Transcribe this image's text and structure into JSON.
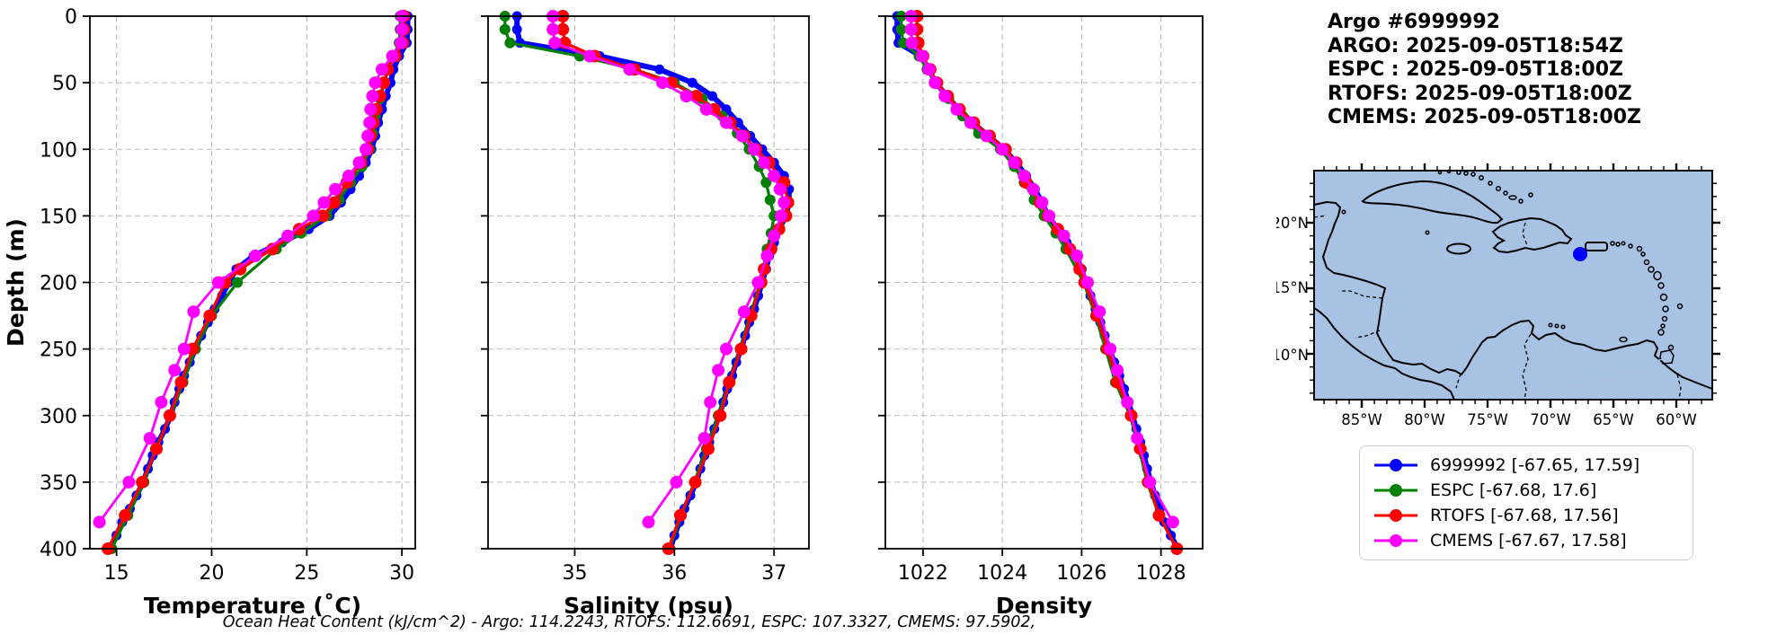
{
  "header": {
    "title": "Argo #6999992",
    "lines": [
      "ARGO: 2025-09-05T18:54Z",
      "ESPC : 2025-09-05T18:00Z",
      "RTOFS: 2025-09-05T18:00Z",
      "CMEMS: 2025-09-05T18:00Z"
    ]
  },
  "caption": "Ocean Heat Content (kJ/cm^2) - Argo: 114.2243,  RTOFS: 112.6691,  ESPC: 107.3327,  CMEMS: 97.5902,",
  "colors": {
    "argo": "#0000ff",
    "espc": "#008000",
    "rtofs": "#ff0000",
    "cmems": "#ff00ff",
    "land": "#deb887",
    "ocean": "#a7c2e2",
    "grid": "#bbbbbb"
  },
  "legend": {
    "entries": [
      {
        "label": "6999992 [-67.65, 17.59]",
        "color": "#0000ff"
      },
      {
        "label": "ESPC [-67.68, 17.6]",
        "color": "#008000"
      },
      {
        "label": "RTOFS [-67.68, 17.56]",
        "color": "#ff0000"
      },
      {
        "label": "CMEMS [-67.67, 17.58]",
        "color": "#ff00ff"
      }
    ]
  },
  "map": {
    "lat_labels": [
      "20°N",
      "15°N",
      "10°N"
    ],
    "lon_labels": [
      "85°W",
      "80°W",
      "75°W",
      "70°W",
      "65°W",
      "60°W"
    ],
    "marker": {
      "lon": -67.65,
      "lat": 17.59,
      "color": "#0000ff"
    }
  },
  "chart_data": [
    {
      "type": "line",
      "name": "temperature",
      "xlabel": "Temperature (˚C)",
      "ylabel": "Depth (m)",
      "xlim": [
        13.6,
        30.7
      ],
      "ylim": [
        0,
        400
      ],
      "xticks": [
        15,
        20,
        25,
        30
      ],
      "xtick_labels": [
        "15",
        "20",
        "25",
        "30"
      ],
      "yticks": [
        0,
        50,
        100,
        150,
        200,
        250,
        300,
        350,
        400
      ],
      "ytick_labels": [
        "0",
        "50",
        "100",
        "150",
        "200",
        "250",
        "300",
        "350",
        "400"
      ],
      "grid": true,
      "series": [
        {
          "name": "6999992",
          "color": "#0000ff",
          "lw": 6,
          "r": 5.5,
          "depth": [
            0,
            10,
            20,
            30,
            40,
            50,
            60,
            70,
            80,
            90,
            100,
            110,
            120,
            130,
            140,
            150,
            160,
            170,
            180,
            190,
            200,
            210,
            220,
            230,
            240,
            250,
            260,
            270,
            280,
            290,
            300,
            310,
            320,
            330,
            340,
            350,
            360,
            370,
            380,
            390,
            400
          ],
          "values": [
            30.3,
            30.3,
            30.25,
            29.85,
            29.55,
            29.4,
            29.15,
            28.95,
            28.75,
            28.6,
            28.4,
            28.1,
            27.75,
            27.3,
            26.8,
            26.2,
            25.1,
            23.7,
            22.2,
            21.3,
            20.9,
            20.55,
            20.15,
            19.8,
            19.45,
            19.15,
            18.85,
            18.55,
            18.3,
            18.05,
            17.85,
            17.55,
            17.2,
            16.9,
            16.65,
            16.4,
            16.05,
            15.7,
            15.3,
            15.0,
            14.7
          ]
        },
        {
          "name": "ESPC",
          "color": "#008000",
          "lw": 3.2,
          "r": 6,
          "depth": [
            0,
            10,
            20,
            30,
            40,
            50,
            62,
            75,
            88,
            100,
            113,
            125,
            138,
            150,
            163,
            175,
            200,
            225,
            250,
            275,
            300,
            325,
            350,
            375,
            400
          ],
          "values": [
            29.9,
            29.9,
            29.85,
            29.55,
            29.25,
            29.1,
            28.85,
            28.6,
            28.45,
            28.3,
            27.9,
            27.3,
            26.7,
            26.05,
            24.7,
            23.4,
            21.35,
            20.0,
            19.15,
            18.5,
            17.85,
            17.05,
            16.45,
            15.6,
            14.75
          ]
        },
        {
          "name": "RTOFS",
          "color": "#ff0000",
          "lw": 3.2,
          "r": 7,
          "depth": [
            0,
            10,
            20,
            30,
            40,
            50,
            60,
            70,
            80,
            90,
            100,
            110,
            125,
            140,
            150,
            160,
            175,
            190,
            200,
            225,
            250,
            275,
            300,
            325,
            350,
            375,
            400
          ],
          "values": [
            30.1,
            30.1,
            30.05,
            29.65,
            29.25,
            29.05,
            28.85,
            28.65,
            28.5,
            28.35,
            28.2,
            27.85,
            27.1,
            26.45,
            25.85,
            24.6,
            23.2,
            21.5,
            20.7,
            19.9,
            19.0,
            18.4,
            17.8,
            17.1,
            16.35,
            15.45,
            14.55
          ]
        },
        {
          "name": "CMEMS",
          "color": "#ff00ff",
          "lw": 2.8,
          "r": 7,
          "depth": [
            0,
            10,
            20,
            30,
            40,
            50,
            60,
            70,
            80,
            90,
            100,
            110,
            120,
            130,
            140,
            150,
            165,
            180,
            200,
            222,
            250,
            266,
            290,
            317,
            350,
            380
          ],
          "values": [
            30.0,
            30.0,
            29.95,
            29.5,
            28.95,
            28.6,
            28.45,
            28.35,
            28.3,
            28.2,
            28.1,
            27.75,
            27.2,
            26.5,
            25.9,
            25.35,
            24.0,
            22.3,
            20.35,
            19.05,
            18.55,
            18.05,
            17.35,
            16.75,
            15.65,
            14.1
          ]
        }
      ]
    },
    {
      "type": "line",
      "name": "salinity",
      "xlabel": "Salinity (psu)",
      "ylabel": "",
      "xlim": [
        34.13,
        37.35
      ],
      "ylim": [
        0,
        400
      ],
      "xticks": [
        35,
        36,
        37
      ],
      "xtick_labels": [
        "35",
        "36",
        "37"
      ],
      "yticks": [
        0,
        50,
        100,
        150,
        200,
        250,
        300,
        350,
        400
      ],
      "ytick_labels": [
        "0",
        "50",
        "100",
        "150",
        "200",
        "250",
        "300",
        "350",
        "400"
      ],
      "grid": true,
      "series": [
        {
          "name": "6999992",
          "color": "#0000ff",
          "lw": 6,
          "r": 5.5,
          "depth": [
            0,
            10,
            20,
            30,
            40,
            50,
            60,
            70,
            80,
            90,
            100,
            110,
            120,
            130,
            140,
            150,
            160,
            170,
            180,
            190,
            200,
            210,
            220,
            230,
            240,
            250,
            260,
            270,
            280,
            290,
            300,
            310,
            320,
            330,
            340,
            350,
            360,
            370,
            380,
            390,
            400
          ],
          "values": [
            34.42,
            34.42,
            34.45,
            35.25,
            35.85,
            36.18,
            36.38,
            36.52,
            36.64,
            36.76,
            36.88,
            37.0,
            37.1,
            37.15,
            37.15,
            37.12,
            37.05,
            37.0,
            36.95,
            36.92,
            36.88,
            36.84,
            36.8,
            36.75,
            36.71,
            36.67,
            36.62,
            36.58,
            36.53,
            36.49,
            36.45,
            36.4,
            36.35,
            36.3,
            36.26,
            36.22,
            36.16,
            36.1,
            36.05,
            36.0,
            35.96
          ]
        },
        {
          "name": "ESPC",
          "color": "#008000",
          "lw": 3.2,
          "r": 6,
          "depth": [
            0,
            10,
            20,
            30,
            40,
            50,
            62,
            75,
            88,
            100,
            113,
            125,
            138,
            150,
            163,
            175,
            200,
            225,
            250,
            275,
            300,
            325,
            350,
            375,
            400
          ],
          "values": [
            34.3,
            34.3,
            34.35,
            35.05,
            35.6,
            36.0,
            36.28,
            36.48,
            36.63,
            36.75,
            36.85,
            36.92,
            36.96,
            37.0,
            36.97,
            36.93,
            36.86,
            36.76,
            36.66,
            36.55,
            36.44,
            36.32,
            36.2,
            36.07,
            35.95
          ]
        },
        {
          "name": "RTOFS",
          "color": "#ff0000",
          "lw": 3.2,
          "r": 7,
          "depth": [
            0,
            10,
            20,
            30,
            40,
            50,
            60,
            70,
            80,
            90,
            100,
            110,
            125,
            140,
            150,
            160,
            175,
            190,
            200,
            225,
            250,
            275,
            300,
            325,
            350,
            375,
            400
          ],
          "values": [
            34.88,
            34.88,
            34.9,
            35.2,
            35.6,
            35.97,
            36.22,
            36.4,
            36.56,
            36.7,
            36.82,
            36.95,
            37.1,
            37.14,
            37.12,
            37.05,
            36.97,
            36.9,
            36.87,
            36.77,
            36.67,
            36.55,
            36.46,
            36.34,
            36.21,
            36.06,
            35.94
          ]
        },
        {
          "name": "CMEMS",
          "color": "#ff00ff",
          "lw": 2.8,
          "r": 7,
          "depth": [
            0,
            10,
            20,
            30,
            40,
            50,
            60,
            70,
            80,
            90,
            100,
            110,
            120,
            130,
            140,
            150,
            165,
            180,
            200,
            222,
            250,
            266,
            290,
            317,
            350,
            380
          ],
          "values": [
            34.78,
            34.78,
            34.8,
            35.15,
            35.55,
            35.88,
            36.12,
            36.32,
            36.52,
            36.68,
            36.8,
            36.9,
            37.0,
            37.06,
            37.1,
            37.07,
            37.0,
            36.93,
            36.84,
            36.7,
            36.52,
            36.44,
            36.36,
            36.3,
            36.02,
            35.74
          ]
        }
      ]
    },
    {
      "type": "line",
      "name": "density",
      "xlabel": "Density",
      "ylabel": "",
      "xlim": [
        1021.05,
        1029.05
      ],
      "ylim": [
        0,
        400
      ],
      "xticks": [
        1022,
        1024,
        1026,
        1028
      ],
      "xtick_labels": [
        "1022",
        "1024",
        "1026",
        "1028"
      ],
      "yticks": [
        0,
        50,
        100,
        150,
        200,
        250,
        300,
        350,
        400
      ],
      "ytick_labels": [
        "0",
        "50",
        "100",
        "150",
        "200",
        "250",
        "300",
        "350",
        "400"
      ],
      "grid": true,
      "series": [
        {
          "name": "6999992",
          "color": "#0000ff",
          "lw": 6,
          "r": 5.5,
          "depth": [
            0,
            10,
            20,
            30,
            40,
            50,
            60,
            70,
            80,
            90,
            100,
            110,
            120,
            130,
            140,
            150,
            160,
            170,
            180,
            190,
            200,
            210,
            220,
            230,
            240,
            250,
            260,
            270,
            280,
            290,
            300,
            310,
            320,
            330,
            340,
            350,
            360,
            370,
            380,
            390,
            400
          ],
          "values": [
            1021.35,
            1021.35,
            1021.38,
            1021.95,
            1022.15,
            1022.32,
            1022.6,
            1022.9,
            1023.25,
            1023.65,
            1024.05,
            1024.35,
            1024.6,
            1024.82,
            1025.0,
            1025.15,
            1025.4,
            1025.62,
            1025.85,
            1026.0,
            1026.1,
            1026.22,
            1026.35,
            1026.47,
            1026.58,
            1026.7,
            1026.82,
            1026.95,
            1027.07,
            1027.18,
            1027.28,
            1027.38,
            1027.48,
            1027.57,
            1027.65,
            1027.75,
            1027.85,
            1027.97,
            1028.08,
            1028.25,
            1028.42
          ]
        },
        {
          "name": "ESPC",
          "color": "#008000",
          "lw": 3.2,
          "r": 6,
          "depth": [
            0,
            10,
            20,
            30,
            40,
            50,
            62,
            75,
            88,
            100,
            113,
            125,
            138,
            150,
            163,
            175,
            200,
            225,
            250,
            275,
            300,
            325,
            350,
            375,
            400
          ],
          "values": [
            1021.45,
            1021.45,
            1021.5,
            1021.9,
            1022.1,
            1022.3,
            1022.65,
            1023.0,
            1023.4,
            1023.95,
            1024.3,
            1024.55,
            1024.8,
            1025.05,
            1025.35,
            1025.6,
            1026.05,
            1026.35,
            1026.6,
            1026.85,
            1027.22,
            1027.45,
            1027.65,
            1027.95,
            1028.4
          ]
        },
        {
          "name": "RTOFS",
          "color": "#ff0000",
          "lw": 3.2,
          "r": 7,
          "depth": [
            0,
            10,
            20,
            30,
            40,
            50,
            60,
            70,
            80,
            90,
            100,
            110,
            125,
            140,
            150,
            160,
            175,
            190,
            200,
            225,
            250,
            275,
            300,
            325,
            350,
            375,
            400
          ],
          "values": [
            1021.85,
            1021.85,
            1021.88,
            1022.0,
            1022.18,
            1022.35,
            1022.62,
            1022.92,
            1023.28,
            1023.68,
            1024.08,
            1024.35,
            1024.6,
            1024.95,
            1025.15,
            1025.4,
            1025.7,
            1025.95,
            1026.08,
            1026.38,
            1026.65,
            1026.9,
            1027.25,
            1027.48,
            1027.68,
            1027.95,
            1028.4
          ]
        },
        {
          "name": "CMEMS",
          "color": "#ff00ff",
          "lw": 2.8,
          "r": 7,
          "depth": [
            0,
            10,
            20,
            30,
            40,
            50,
            60,
            70,
            80,
            90,
            100,
            110,
            120,
            130,
            140,
            150,
            165,
            180,
            200,
            222,
            250,
            266,
            290,
            317,
            350,
            380
          ],
          "values": [
            1021.7,
            1021.7,
            1021.72,
            1021.98,
            1022.15,
            1022.3,
            1022.55,
            1022.85,
            1023.2,
            1023.6,
            1024.0,
            1024.3,
            1024.55,
            1024.78,
            1025.0,
            1025.18,
            1025.55,
            1025.88,
            1026.15,
            1026.45,
            1026.72,
            1026.9,
            1027.15,
            1027.4,
            1027.72,
            1028.3
          ]
        }
      ]
    }
  ]
}
